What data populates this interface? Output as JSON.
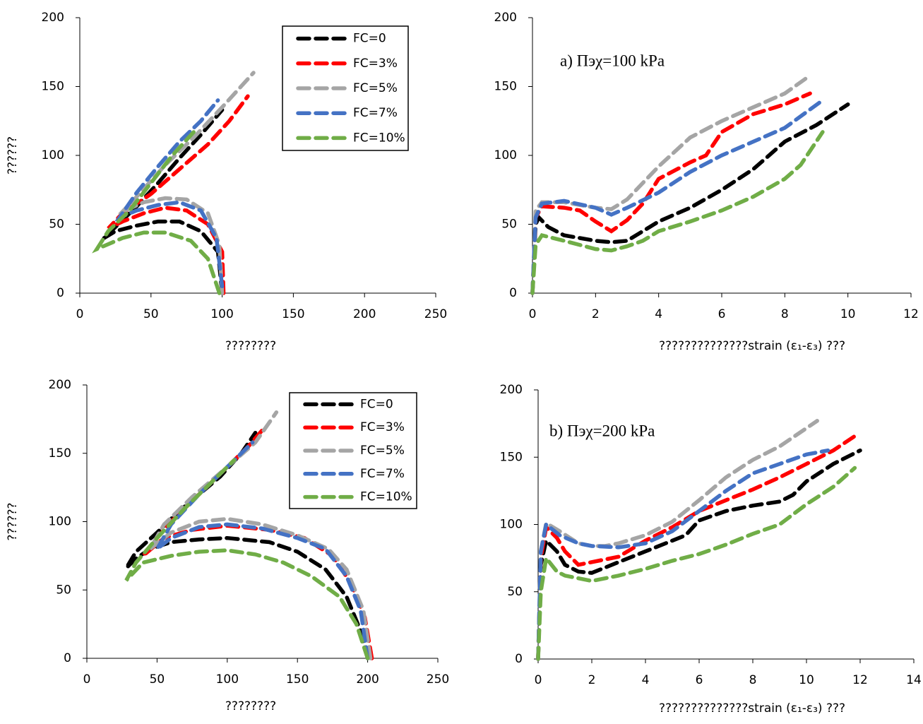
{
  "chart_data": [
    {
      "type": "line",
      "xlabel": "????????",
      "ylabel": "??????",
      "xlim": [
        0,
        250
      ],
      "ylim": [
        0,
        200
      ],
      "xticks": [
        0,
        50,
        100,
        150,
        200,
        250
      ],
      "yticks": [
        0,
        50,
        100,
        150,
        200
      ],
      "series": [
        {
          "name": "FC=0",
          "color": "#000000",
          "x": [
            100,
            97,
            85,
            70,
            55,
            40,
            25,
            17,
            25,
            40,
            55,
            70,
            85,
            100
          ],
          "values": [
            0,
            30,
            45,
            52,
            52,
            49,
            45,
            40,
            48,
            63,
            80,
            98,
            115,
            133
          ]
        },
        {
          "name": "FC=3%",
          "color": "#ff0000",
          "x": [
            101,
            100,
            90,
            75,
            60,
            45,
            30,
            20,
            30,
            50,
            70,
            90,
            105,
            118
          ],
          "values": [
            0,
            30,
            50,
            60,
            62,
            58,
            52,
            47,
            58,
            72,
            90,
            108,
            125,
            143
          ]
        },
        {
          "name": "FC=5%",
          "color": "#a5a5a5",
          "x": [
            100,
            98,
            90,
            75,
            60,
            45,
            32,
            28,
            40,
            60,
            80,
            100,
            122
          ],
          "values": [
            0,
            35,
            58,
            68,
            69,
            66,
            60,
            57,
            70,
            93,
            113,
            135,
            160
          ]
        },
        {
          "name": "FC=7%",
          "color": "#4472c4",
          "x": [
            100,
            96,
            85,
            70,
            55,
            40,
            28,
            40,
            55,
            70,
            85,
            97
          ],
          "values": [
            5,
            40,
            60,
            66,
            64,
            60,
            55,
            73,
            92,
            110,
            125,
            140
          ]
        },
        {
          "name": "FC=10%",
          "color": "#70ad47",
          "x": [
            98,
            90,
            78,
            60,
            45,
            30,
            12,
            20,
            35,
            50,
            65,
            80
          ],
          "values": [
            0,
            25,
            38,
            44,
            44,
            40,
            32,
            45,
            60,
            80,
            100,
            117
          ]
        }
      ]
    },
    {
      "type": "line",
      "xlabel": "??????????????strain (ε₁-ε₃) ???",
      "annotation": "a) Πэχ=100 kPa",
      "xlim": [
        0,
        12
      ],
      "ylim": [
        0,
        200
      ],
      "xticks": [
        0,
        2,
        4,
        6,
        8,
        10,
        12
      ],
      "yticks": [
        0,
        50,
        100,
        150,
        200
      ],
      "series": [
        {
          "color": "#000000",
          "x": [
            0,
            0.1,
            0.2,
            0.5,
            1,
            1.5,
            2,
            2.5,
            3,
            3.5,
            4,
            5,
            6,
            7,
            8,
            9,
            10
          ],
          "values": [
            0,
            50,
            55,
            48,
            42,
            40,
            38,
            37,
            38,
            45,
            52,
            62,
            75,
            90,
            110,
            122,
            137
          ]
        },
        {
          "color": "#ff0000",
          "x": [
            0,
            0.1,
            0.3,
            1,
            1.5,
            2,
            2.5,
            3,
            3.5,
            4,
            5,
            5.5,
            6,
            7,
            8,
            8.8
          ],
          "values": [
            0,
            55,
            63,
            62,
            60,
            52,
            45,
            53,
            65,
            83,
            95,
            100,
            117,
            130,
            137,
            145
          ]
        },
        {
          "color": "#a5a5a5",
          "x": [
            0,
            0.1,
            0.3,
            1,
            2,
            2.5,
            3,
            3.5,
            4,
            5,
            6,
            7,
            8,
            8.8
          ],
          "values": [
            0,
            60,
            66,
            66,
            62,
            61,
            68,
            80,
            92,
            113,
            125,
            135,
            145,
            158
          ]
        },
        {
          "color": "#4472c4",
          "x": [
            0,
            0.1,
            0.3,
            1,
            2,
            2.5,
            3,
            4,
            5,
            6,
            7,
            8,
            9.2
          ],
          "values": [
            0,
            55,
            65,
            67,
            62,
            57,
            62,
            73,
            88,
            100,
            110,
            120,
            140
          ]
        },
        {
          "color": "#70ad47",
          "x": [
            0,
            0.1,
            0.3,
            1,
            2,
            2.5,
            3,
            3.5,
            4,
            5,
            6,
            7,
            8,
            8.5,
            9.2
          ],
          "values": [
            0,
            35,
            42,
            38,
            32,
            31,
            34,
            38,
            45,
            52,
            60,
            70,
            83,
            93,
            117
          ]
        }
      ]
    },
    {
      "type": "line",
      "xlabel": "????????",
      "ylabel": "??????",
      "xlim": [
        0,
        250
      ],
      "ylim": [
        0,
        200
      ],
      "xticks": [
        0,
        50,
        100,
        150,
        200,
        250
      ],
      "yticks": [
        0,
        50,
        100,
        150,
        200
      ],
      "series": [
        {
          "name": "FC=0",
          "color": "#000000",
          "x": [
            200,
            195,
            185,
            170,
            150,
            130,
            100,
            80,
            60,
            45,
            35,
            28,
            35,
            50,
            65,
            80,
            95,
            110,
            120
          ],
          "values": [
            0,
            20,
            45,
            65,
            78,
            85,
            88,
            87,
            85,
            80,
            73,
            66,
            78,
            92,
            107,
            120,
            133,
            150,
            165
          ]
        },
        {
          "name": "FC=3%",
          "color": "#ff0000",
          "x": [
            203,
            198,
            188,
            175,
            155,
            130,
            100,
            75,
            55,
            40,
            45,
            60,
            80,
            100,
            115,
            125
          ],
          "values": [
            0,
            30,
            55,
            75,
            88,
            94,
            97,
            94,
            88,
            75,
            82,
            100,
            120,
            140,
            155,
            167
          ]
        },
        {
          "name": "FC=5%",
          "color": "#a5a5a5",
          "x": [
            202,
            197,
            185,
            172,
            150,
            125,
            100,
            80,
            60,
            45,
            55,
            75,
            100,
            120,
            135
          ],
          "values": [
            0,
            35,
            65,
            80,
            90,
            98,
            102,
            100,
            92,
            80,
            98,
            118,
            140,
            158,
            180
          ]
        },
        {
          "name": "FC=7%",
          "color": "#4472c4",
          "x": [
            200,
            195,
            185,
            170,
            150,
            125,
            100,
            80,
            60,
            50,
            60,
            80,
            100,
            118
          ],
          "values": [
            0,
            35,
            60,
            80,
            88,
            95,
            98,
            96,
            88,
            80,
            98,
            120,
            140,
            158
          ]
        },
        {
          "name": "FC=10%",
          "color": "#70ad47",
          "x": [
            200,
            192,
            180,
            160,
            140,
            120,
            100,
            80,
            60,
            40,
            28,
            35,
            50,
            70,
            90,
            105
          ],
          "values": [
            0,
            25,
            45,
            60,
            70,
            76,
            79,
            78,
            75,
            70,
            57,
            70,
            88,
            110,
            130,
            145
          ]
        }
      ]
    },
    {
      "type": "line",
      "xlabel": "??????????????strain (ε₁-ε₃) ???",
      "annotation": "b) Πэχ=200 kPa",
      "xlim": [
        0,
        14
      ],
      "ylim": [
        0,
        200
      ],
      "xticks": [
        0,
        2,
        4,
        6,
        8,
        10,
        12,
        14
      ],
      "yticks": [
        0,
        50,
        100,
        150,
        200
      ],
      "series": [
        {
          "color": "#000000",
          "x": [
            0,
            0.1,
            0.3,
            0.7,
            1,
            1.5,
            2,
            2.5,
            3,
            4,
            5,
            5.5,
            6,
            7,
            8,
            9,
            9.5,
            10,
            11,
            12
          ],
          "values": [
            0,
            70,
            88,
            80,
            70,
            65,
            64,
            68,
            72,
            80,
            88,
            92,
            103,
            110,
            114,
            117,
            122,
            132,
            145,
            155
          ]
        },
        {
          "color": "#ff0000",
          "x": [
            0,
            0.1,
            0.3,
            0.7,
            1,
            1.5,
            2,
            3,
            4,
            5,
            6,
            7,
            8,
            9,
            10,
            11,
            11.9
          ],
          "values": [
            0,
            75,
            98,
            90,
            80,
            70,
            72,
            76,
            88,
            98,
            110,
            118,
            126,
            135,
            145,
            155,
            167
          ]
        },
        {
          "color": "#a5a5a5",
          "x": [
            0,
            0.1,
            0.3,
            0.8,
            1.5,
            2,
            2.5,
            3,
            4,
            5,
            6,
            7,
            8,
            9,
            10.4
          ],
          "values": [
            0,
            80,
            101,
            95,
            86,
            84,
            84,
            86,
            92,
            102,
            118,
            135,
            148,
            158,
            177
          ]
        },
        {
          "color": "#4472c4",
          "x": [
            0,
            0.1,
            0.3,
            0.8,
            1.5,
            2,
            3,
            4,
            5,
            6,
            7,
            8,
            9,
            10,
            10.8
          ],
          "values": [
            0,
            80,
            100,
            92,
            86,
            84,
            83,
            86,
            95,
            110,
            125,
            138,
            145,
            152,
            155
          ]
        },
        {
          "color": "#70ad47",
          "x": [
            0,
            0.1,
            0.3,
            0.7,
            1,
            1.5,
            2,
            3,
            4,
            5,
            6,
            7,
            8,
            9,
            10,
            11,
            11.8
          ],
          "values": [
            0,
            50,
            75,
            65,
            62,
            60,
            58,
            62,
            67,
            73,
            78,
            85,
            93,
            100,
            115,
            128,
            142
          ]
        }
      ]
    }
  ]
}
